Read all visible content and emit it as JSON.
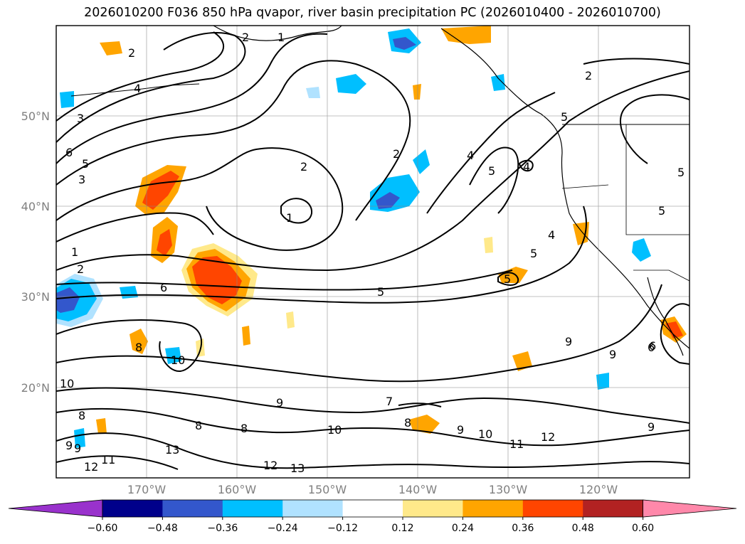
{
  "title": "2026010200 F036 850 hPa qvapor, river basin precipitation PC (2026010400 - 2026010700)",
  "map": {
    "lat_labels": [
      "50°N",
      "40°N",
      "30°N",
      "20°N"
    ],
    "lon_labels": [
      "170°W",
      "160°W",
      "150°W",
      "140°W",
      "130°W",
      "120°W"
    ],
    "contour_labels": [
      "2",
      "1",
      "2",
      "4",
      "3",
      "6",
      "5",
      "3",
      "1",
      "2",
      "6",
      "5",
      "2",
      "2",
      "1",
      "4",
      "5",
      "4",
      "5",
      "4",
      "5",
      "6",
      "5",
      "5",
      "2",
      "10",
      "8",
      "10",
      "8",
      "9",
      "8",
      "8",
      "9",
      "7",
      "8",
      "10",
      "9",
      "10",
      "11",
      "12",
      "9",
      "9",
      "11",
      "12",
      "13",
      "12",
      "13",
      "9",
      "6",
      "9",
      "5"
    ]
  },
  "colorbar": {
    "tick_labels": [
      "−0.60",
      "−0.48",
      "−0.36",
      "−0.24",
      "−0.12",
      "0.12",
      "0.24",
      "0.36",
      "0.48",
      "0.60"
    ],
    "colors": [
      "#9932cc",
      "#00008b",
      "#3357cc",
      "#00bfff",
      "#b0e2ff",
      "#ffffff",
      "#ffe98a",
      "#ffa500",
      "#ff4500",
      "#b22222",
      "#ff88aa"
    ]
  }
}
